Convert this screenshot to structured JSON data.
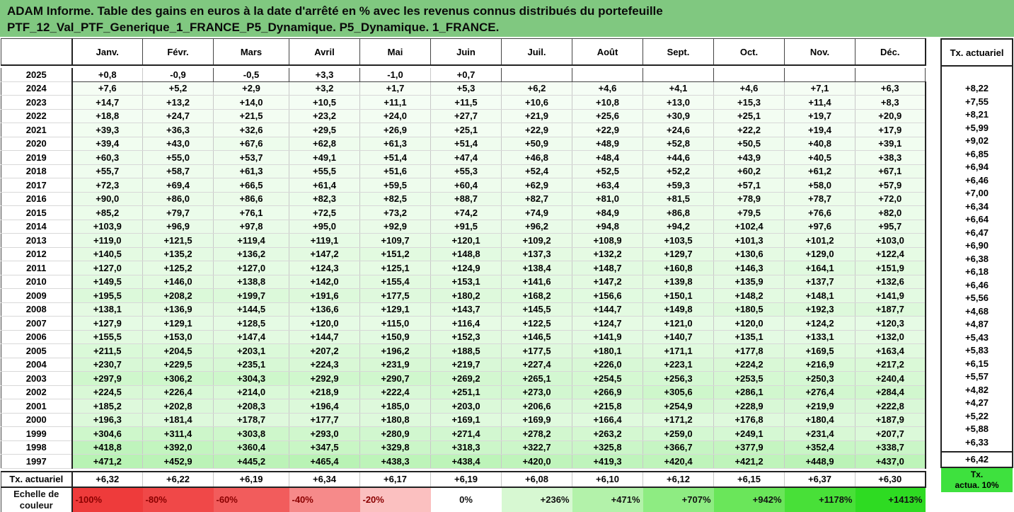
{
  "title": {
    "line1": "ADAM Informe. Table des gains en euros à la date d'arrêté en % avec les revenus connus distribués du portefeuille",
    "line2": "PTF_12_Val_PTF_Generique_1_FRANCE_P5_Dynamique. P5_Dynamique. 1_FRANCE."
  },
  "months": [
    "Janv.",
    "Févr.",
    "Mars",
    "Avril",
    "Mai",
    "Juin",
    "Juil.",
    "Août",
    "Sept.",
    "Oct.",
    "Nov.",
    "Déc."
  ],
  "side_header": "Tx. actuariel",
  "rows": [
    {
      "year": "2025",
      "values": [
        "+0,8",
        "-0,9",
        "-0,5",
        "+3,3",
        "-1,0",
        "+0,7",
        "",
        "",
        "",
        "",
        "",
        ""
      ],
      "rate": ""
    },
    {
      "year": "2024",
      "values": [
        "+7,6",
        "+5,2",
        "+2,9",
        "+3,2",
        "+1,7",
        "+5,3",
        "+6,2",
        "+4,6",
        "+4,1",
        "+4,6",
        "+7,1",
        "+6,3"
      ],
      "rate": "+8,22"
    },
    {
      "year": "2023",
      "values": [
        "+14,7",
        "+13,2",
        "+14,0",
        "+10,5",
        "+11,1",
        "+11,5",
        "+10,6",
        "+10,8",
        "+13,0",
        "+15,3",
        "+11,4",
        "+8,3"
      ],
      "rate": "+7,55"
    },
    {
      "year": "2022",
      "values": [
        "+18,8",
        "+24,7",
        "+21,5",
        "+23,2",
        "+24,0",
        "+27,7",
        "+21,9",
        "+25,6",
        "+30,9",
        "+25,1",
        "+19,7",
        "+20,9"
      ],
      "rate": "+8,21"
    },
    {
      "year": "2021",
      "values": [
        "+39,3",
        "+36,3",
        "+32,6",
        "+29,5",
        "+26,9",
        "+25,1",
        "+22,9",
        "+22,9",
        "+24,6",
        "+22,2",
        "+19,4",
        "+17,9"
      ],
      "rate": "+5,99"
    },
    {
      "year": "2020",
      "values": [
        "+39,4",
        "+43,0",
        "+67,6",
        "+62,8",
        "+61,3",
        "+51,4",
        "+50,9",
        "+48,9",
        "+52,8",
        "+50,5",
        "+40,8",
        "+39,1"
      ],
      "rate": "+9,02"
    },
    {
      "year": "2019",
      "values": [
        "+60,3",
        "+55,0",
        "+53,7",
        "+49,1",
        "+51,4",
        "+47,4",
        "+46,8",
        "+48,4",
        "+44,6",
        "+43,9",
        "+40,5",
        "+38,3"
      ],
      "rate": "+6,85"
    },
    {
      "year": "2018",
      "values": [
        "+55,7",
        "+58,7",
        "+61,3",
        "+55,5",
        "+51,6",
        "+55,3",
        "+52,4",
        "+52,5",
        "+52,2",
        "+60,2",
        "+61,2",
        "+67,1"
      ],
      "rate": "+6,94"
    },
    {
      "year": "2017",
      "values": [
        "+72,3",
        "+69,4",
        "+66,5",
        "+61,4",
        "+59,5",
        "+60,4",
        "+62,9",
        "+63,4",
        "+59,3",
        "+57,1",
        "+58,0",
        "+57,9"
      ],
      "rate": "+6,46"
    },
    {
      "year": "2016",
      "values": [
        "+90,0",
        "+86,0",
        "+86,6",
        "+82,3",
        "+82,5",
        "+88,7",
        "+82,7",
        "+81,0",
        "+81,5",
        "+78,9",
        "+78,7",
        "+72,0"
      ],
      "rate": "+7,00"
    },
    {
      "year": "2015",
      "values": [
        "+85,2",
        "+79,7",
        "+76,1",
        "+72,5",
        "+73,2",
        "+74,2",
        "+74,9",
        "+84,9",
        "+86,8",
        "+79,5",
        "+76,6",
        "+82,0"
      ],
      "rate": "+6,34"
    },
    {
      "year": "2014",
      "values": [
        "+103,9",
        "+96,9",
        "+97,8",
        "+95,0",
        "+92,9",
        "+91,5",
        "+96,2",
        "+94,8",
        "+94,2",
        "+102,4",
        "+97,6",
        "+95,7"
      ],
      "rate": "+6,64"
    },
    {
      "year": "2013",
      "values": [
        "+119,0",
        "+121,5",
        "+119,4",
        "+119,1",
        "+109,7",
        "+120,1",
        "+109,2",
        "+108,9",
        "+103,5",
        "+101,3",
        "+101,2",
        "+103,0"
      ],
      "rate": "+6,47"
    },
    {
      "year": "2012",
      "values": [
        "+140,5",
        "+135,2",
        "+136,2",
        "+147,2",
        "+151,2",
        "+148,8",
        "+137,3",
        "+132,2",
        "+129,7",
        "+130,6",
        "+129,0",
        "+122,4"
      ],
      "rate": "+6,90"
    },
    {
      "year": "2011",
      "values": [
        "+127,0",
        "+125,2",
        "+127,0",
        "+124,3",
        "+125,1",
        "+124,9",
        "+138,4",
        "+148,7",
        "+160,8",
        "+146,3",
        "+164,1",
        "+151,9"
      ],
      "rate": "+6,38"
    },
    {
      "year": "2010",
      "values": [
        "+149,5",
        "+146,0",
        "+138,8",
        "+142,0",
        "+155,4",
        "+153,1",
        "+141,6",
        "+147,2",
        "+139,8",
        "+135,9",
        "+137,7",
        "+132,6"
      ],
      "rate": "+6,18"
    },
    {
      "year": "2009",
      "values": [
        "+195,5",
        "+208,2",
        "+199,7",
        "+191,6",
        "+177,5",
        "+180,2",
        "+168,2",
        "+156,6",
        "+150,1",
        "+148,2",
        "+148,1",
        "+141,9"
      ],
      "rate": "+6,46"
    },
    {
      "year": "2008",
      "values": [
        "+138,1",
        "+136,9",
        "+144,5",
        "+136,6",
        "+129,1",
        "+143,7",
        "+145,5",
        "+144,7",
        "+149,8",
        "+180,5",
        "+192,3",
        "+187,7"
      ],
      "rate": "+5,56"
    },
    {
      "year": "2007",
      "values": [
        "+127,9",
        "+129,1",
        "+128,5",
        "+120,0",
        "+115,0",
        "+116,4",
        "+122,5",
        "+124,7",
        "+121,0",
        "+120,0",
        "+124,2",
        "+120,3"
      ],
      "rate": "+4,68"
    },
    {
      "year": "2006",
      "values": [
        "+155,5",
        "+153,0",
        "+147,4",
        "+144,7",
        "+150,9",
        "+152,3",
        "+146,5",
        "+141,9",
        "+140,7",
        "+135,1",
        "+133,1",
        "+132,0"
      ],
      "rate": "+4,87"
    },
    {
      "year": "2005",
      "values": [
        "+211,5",
        "+204,5",
        "+203,1",
        "+207,2",
        "+196,2",
        "+188,5",
        "+177,5",
        "+180,1",
        "+171,1",
        "+177,8",
        "+169,5",
        "+163,4"
      ],
      "rate": "+5,43"
    },
    {
      "year": "2004",
      "values": [
        "+230,7",
        "+229,5",
        "+235,1",
        "+224,3",
        "+231,9",
        "+219,7",
        "+227,4",
        "+226,0",
        "+223,1",
        "+224,2",
        "+216,9",
        "+217,2"
      ],
      "rate": "+5,83"
    },
    {
      "year": "2003",
      "values": [
        "+297,9",
        "+306,2",
        "+304,3",
        "+292,9",
        "+290,7",
        "+269,2",
        "+265,1",
        "+254,5",
        "+256,3",
        "+253,5",
        "+250,3",
        "+240,4"
      ],
      "rate": "+6,15"
    },
    {
      "year": "2002",
      "values": [
        "+224,5",
        "+226,4",
        "+214,0",
        "+218,9",
        "+222,4",
        "+251,1",
        "+273,0",
        "+266,9",
        "+305,6",
        "+286,1",
        "+276,4",
        "+284,4"
      ],
      "rate": "+5,57"
    },
    {
      "year": "2001",
      "values": [
        "+185,2",
        "+202,8",
        "+208,3",
        "+196,4",
        "+185,0",
        "+203,0",
        "+206,6",
        "+215,8",
        "+254,9",
        "+228,9",
        "+219,9",
        "+222,8"
      ],
      "rate": "+4,82"
    },
    {
      "year": "2000",
      "values": [
        "+196,3",
        "+181,4",
        "+178,7",
        "+177,7",
        "+180,8",
        "+169,1",
        "+169,9",
        "+166,4",
        "+171,2",
        "+176,8",
        "+180,4",
        "+187,9"
      ],
      "rate": "+4,27"
    },
    {
      "year": "1999",
      "values": [
        "+304,6",
        "+311,4",
        "+303,8",
        "+293,0",
        "+280,9",
        "+271,4",
        "+278,2",
        "+263,2",
        "+259,0",
        "+249,1",
        "+231,4",
        "+207,7"
      ],
      "rate": "+5,22"
    },
    {
      "year": "1998",
      "values": [
        "+418,8",
        "+392,0",
        "+360,4",
        "+347,5",
        "+329,8",
        "+318,3",
        "+322,7",
        "+325,8",
        "+366,7",
        "+377,9",
        "+352,4",
        "+338,7"
      ],
      "rate": "+5,88"
    },
    {
      "year": "1997",
      "values": [
        "+471,2",
        "+452,9",
        "+445,2",
        "+465,4",
        "+438,3",
        "+438,4",
        "+420,0",
        "+419,3",
        "+420,4",
        "+421,2",
        "+448,9",
        "+437,0"
      ],
      "rate": "+6,33"
    }
  ],
  "tx_row": {
    "label": "Tx. actuariel",
    "values": [
      "+6,32",
      "+6,22",
      "+6,19",
      "+6,34",
      "+6,17",
      "+6,19",
      "+6,08",
      "+6,10",
      "+6,12",
      "+6,15",
      "+6,37",
      "+6,30"
    ],
    "rate": "+6,42"
  },
  "scale": {
    "label_line1": "Echelle de",
    "label_line2": "couleur",
    "items": [
      {
        "text": "-100%",
        "color": "#ee3b3b",
        "side": "neg"
      },
      {
        "text": "-80%",
        "color": "#f04848",
        "side": "neg"
      },
      {
        "text": "-60%",
        "color": "#f25c5c",
        "side": "neg"
      },
      {
        "text": "-40%",
        "color": "#f68a8a",
        "side": "neg"
      },
      {
        "text": "-20%",
        "color": "#fbc0c0",
        "side": "neg"
      },
      {
        "text": "0%",
        "color": "#ffffff",
        "side": "zero"
      },
      {
        "text": "+236%",
        "color": "#d7f8d2",
        "side": "pos"
      },
      {
        "text": "+471%",
        "color": "#b3f2aa",
        "side": "pos"
      },
      {
        "text": "+707%",
        "color": "#8eec82",
        "side": "pos"
      },
      {
        "text": "+942%",
        "color": "#6ae65a",
        "side": "pos"
      },
      {
        "text": "+1178%",
        "color": "#48e038",
        "side": "pos"
      },
      {
        "text": "+1413%",
        "color": "#2edb22",
        "side": "pos"
      }
    ],
    "side_line1": "Tx.",
    "side_line2": "actua. 10%"
  },
  "colors": {
    "title_bg": "#80c880",
    "neg_text": "#8a0000",
    "side_scale_bg": "#3ee13e"
  }
}
